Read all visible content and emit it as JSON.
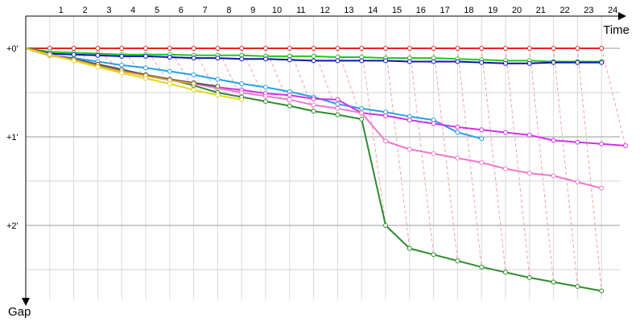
{
  "chart_data": {
    "type": "line",
    "title": "",
    "xlabel": "Time",
    "ylabel": "Gap",
    "x_ticks": [
      1,
      2,
      3,
      4,
      5,
      6,
      7,
      8,
      9,
      10,
      11,
      12,
      13,
      14,
      15,
      16,
      17,
      18,
      19,
      20,
      21,
      22,
      23,
      24
    ],
    "y_ticks": [
      {
        "value": 0,
        "label": "+0'"
      },
      {
        "value": 1,
        "label": "+1'"
      },
      {
        "value": 2,
        "label": "+2'"
      }
    ],
    "ylim": [
      -0.05,
      2.9
    ],
    "xlim": [
      0,
      25
    ],
    "grid": true,
    "legend": "none",
    "series": [
      {
        "color": "#e32222",
        "values": [
          0.0,
          0.0,
          0.0,
          0.0,
          0.0,
          0.0,
          0.0,
          0.0,
          0.0,
          0.0,
          0.0,
          0.0,
          0.0,
          0.0,
          0.0,
          0.0,
          0.0,
          0.0,
          0.0,
          0.0,
          0.0,
          0.0,
          0.0,
          0.0
        ]
      },
      {
        "color": "#1ec81e",
        "values": [
          0.04,
          0.05,
          0.06,
          0.07,
          0.07,
          0.07,
          0.08,
          0.08,
          0.08,
          0.09,
          0.09,
          0.09,
          0.1,
          0.1,
          0.11,
          0.11,
          0.11,
          0.12,
          0.13,
          0.14,
          0.14,
          0.15,
          0.15,
          0.15
        ]
      },
      {
        "color": "#1010b4",
        "values": [
          0.06,
          0.07,
          0.08,
          0.09,
          0.09,
          0.1,
          0.11,
          0.11,
          0.12,
          0.12,
          0.13,
          0.14,
          0.14,
          0.14,
          0.14,
          0.15,
          0.15,
          0.15,
          0.16,
          0.17,
          0.17,
          0.16,
          0.16,
          0.16
        ]
      },
      {
        "color": "#24a0e8",
        "values": [
          0.08,
          0.11,
          0.15,
          0.19,
          0.22,
          0.26,
          0.3,
          0.35,
          0.4,
          0.44,
          0.49,
          0.55,
          0.63,
          0.68,
          0.72,
          0.77,
          0.81,
          0.95,
          1.02
        ]
      },
      {
        "color": "#cc33e6",
        "values": [
          0.07,
          0.12,
          0.18,
          0.24,
          0.3,
          0.35,
          0.4,
          0.44,
          0.47,
          0.51,
          0.53,
          0.57,
          0.58,
          0.73,
          0.76,
          0.81,
          0.85,
          0.89,
          0.92,
          0.95,
          0.98,
          1.04,
          1.06,
          1.08,
          1.1
        ]
      },
      {
        "color": "#ee77cc",
        "values": [
          0.08,
          0.13,
          0.19,
          0.25,
          0.3,
          0.35,
          0.4,
          0.45,
          0.5,
          0.54,
          0.58,
          0.64,
          0.68,
          0.73,
          1.05,
          1.14,
          1.19,
          1.24,
          1.29,
          1.36,
          1.41,
          1.44,
          1.51,
          1.58
        ]
      },
      {
        "color": "#2e8b2e",
        "values": [
          0.08,
          0.13,
          0.19,
          0.25,
          0.3,
          0.35,
          0.42,
          0.5,
          0.55,
          0.6,
          0.65,
          0.71,
          0.75,
          0.8,
          2.0,
          2.26,
          2.33,
          2.4,
          2.47,
          2.53,
          2.59,
          2.64,
          2.69,
          2.74
        ]
      },
      {
        "color": "#555555",
        "values": [
          0.08,
          0.12,
          0.18,
          0.24,
          0.3,
          0.35,
          0.39,
          0.43
        ]
      },
      {
        "color": "#e8a030",
        "values": [
          0.08,
          0.13,
          0.2,
          0.26,
          0.31,
          0.36,
          0.4
        ]
      },
      {
        "color": "#e0d820",
        "values": [
          0.07,
          0.14,
          0.21,
          0.28,
          0.34,
          0.4,
          0.47,
          0.53,
          0.58
        ]
      }
    ]
  }
}
